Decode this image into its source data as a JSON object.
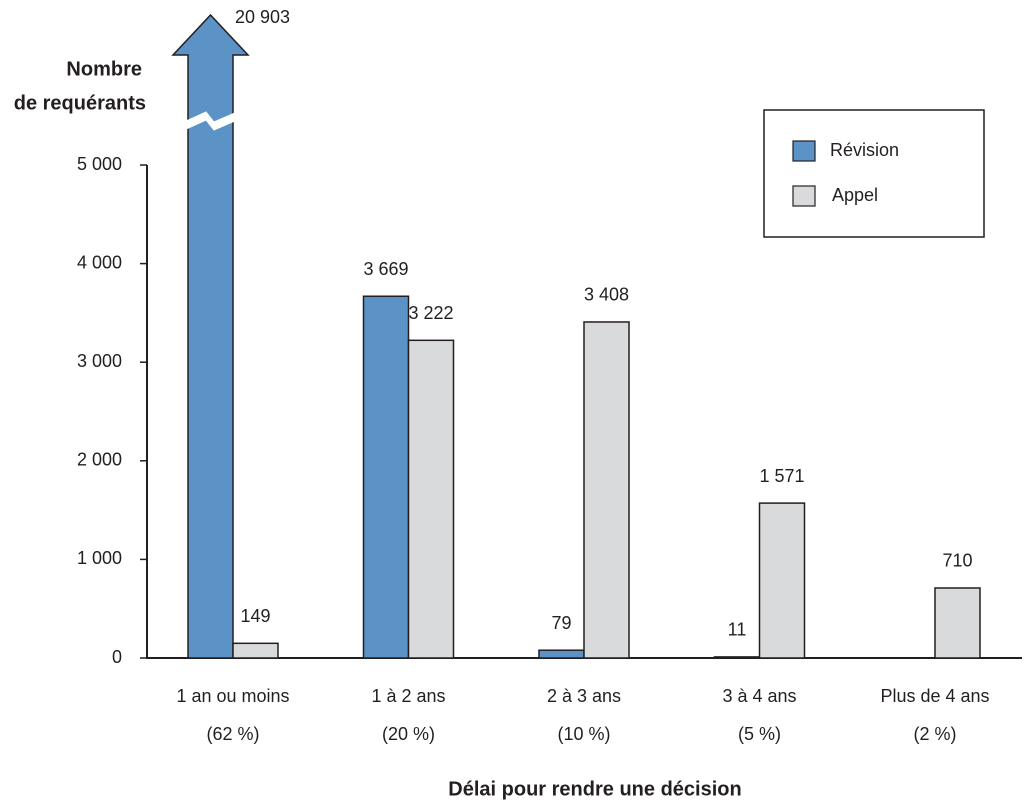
{
  "chart_data": {
    "type": "bar",
    "y_label": [
      "Nombre",
      "de requérants"
    ],
    "x_label": "Délai pour rendre une décision",
    "categories": [
      [
        "1 an ou moins",
        "(62 %)"
      ],
      [
        "1 à 2 ans",
        "(20 %)"
      ],
      [
        "2 à 3 ans",
        "(10 %)"
      ],
      [
        "3 à 4 ans",
        "(5 %)"
      ],
      [
        "Plus de 4 ans",
        "(2 %)"
      ]
    ],
    "series": [
      {
        "name": "Révision",
        "color": "#5b93c7",
        "values": [
          20903,
          3669,
          79,
          11,
          null
        ],
        "value_labels": [
          "20 903",
          "3 669",
          "79",
          "11",
          null
        ]
      },
      {
        "name": "Appel",
        "color": "#d9dadb",
        "values": [
          149,
          3222,
          3408,
          1571,
          710
        ],
        "value_labels": [
          "149",
          "3 222",
          "3 408",
          "1 571",
          "710"
        ]
      }
    ],
    "ylim": [
      0,
      5000
    ],
    "yticks": [
      {
        "value": 0,
        "label": "0"
      },
      {
        "value": 1000,
        "label": "1 000"
      },
      {
        "value": 2000,
        "label": "2 000"
      },
      {
        "value": 3000,
        "label": "3 000"
      },
      {
        "value": 4000,
        "label": "4 000"
      },
      {
        "value": 5000,
        "label": "5 000"
      }
    ],
    "legend": "upper right"
  }
}
